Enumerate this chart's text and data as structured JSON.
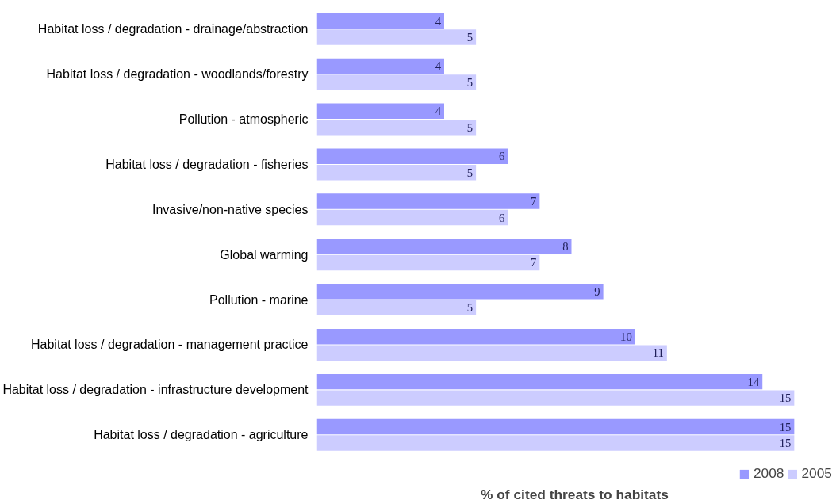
{
  "chart_data": {
    "type": "bar",
    "orientation": "horizontal",
    "xlabel": "% of cited threats to habitats",
    "categories": [
      "Habitat loss / degradation - drainage/abstraction",
      "Habitat loss / degradation - woodlands/forestry",
      "Pollution - atmospheric",
      "Habitat loss / degradation - fisheries",
      "Invasive/non-native species",
      "Global warming",
      "Pollution - marine",
      "Habitat loss / degradation - management practice",
      "Habitat loss / degradation - infrastructure development",
      "Habitat loss / degradation - agriculture"
    ],
    "series": [
      {
        "name": "2008",
        "color": "#9999ff",
        "values": [
          4,
          4,
          4,
          6,
          7,
          8,
          9,
          10,
          14,
          15
        ]
      },
      {
        "name": "2005",
        "color": "#ccccff",
        "values": [
          5,
          5,
          5,
          5,
          6,
          7,
          5,
          11,
          15,
          15
        ]
      }
    ],
    "data_labels": true,
    "legend": "bottom right",
    "grid": false
  }
}
